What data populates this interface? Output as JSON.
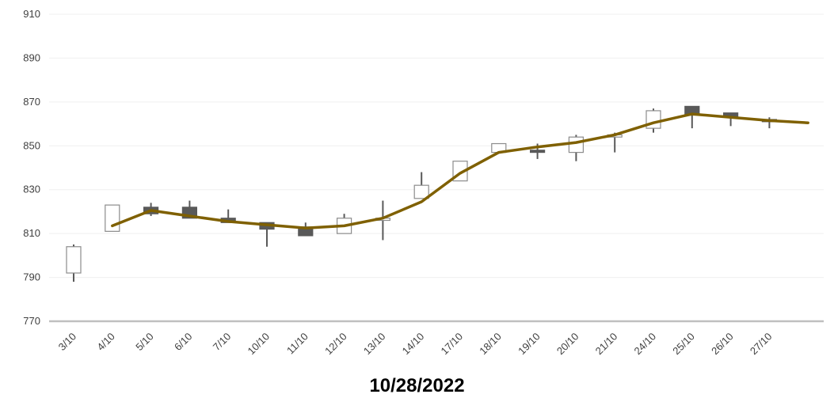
{
  "chart_data": {
    "type": "candlestick",
    "title": "10/28/2022",
    "xlabel": "",
    "ylabel": "",
    "ylim": [
      770,
      910
    ],
    "yticks": [
      770,
      790,
      810,
      830,
      850,
      870,
      890,
      910
    ],
    "grid": true,
    "categories": [
      "3/10",
      "4/10",
      "5/10",
      "6/10",
      "7/10",
      "10/10",
      "11/10",
      "12/10",
      "13/10",
      "14/10",
      "17/10",
      "18/10",
      "19/10",
      "20/10",
      "21/10",
      "24/10",
      "25/10",
      "26/10",
      "27/10"
    ],
    "open": [
      792,
      811,
      822,
      822,
      817,
      815,
      813,
      810,
      816,
      826,
      834,
      847,
      848,
      847,
      854,
      858,
      868,
      865,
      862
    ],
    "high": [
      805,
      823,
      824,
      825,
      821,
      815,
      815,
      819,
      825,
      838,
      843,
      851,
      851,
      855,
      856,
      867,
      868,
      865,
      863
    ],
    "low": [
      788,
      811,
      818,
      817,
      815,
      804,
      809,
      810,
      807,
      826,
      834,
      847,
      844,
      843,
      847,
      856,
      858,
      859,
      858
    ],
    "close": [
      804,
      823,
      819,
      817,
      815,
      812,
      809,
      817,
      817,
      832,
      843,
      851,
      847,
      854,
      855,
      866,
      864,
      863,
      861
    ],
    "trend": {
      "x_start_index": 1,
      "values": [
        813.5,
        820.5,
        818,
        815.5,
        814,
        812.5,
        813.5,
        817,
        824.5,
        837.5,
        847,
        849.5,
        851.5,
        855,
        860.5,
        864.5,
        863,
        861.5,
        860.5
      ]
    },
    "colors": {
      "up_body": "#ffffff",
      "up_border": "#8c8c8c",
      "down_body": "#595959",
      "wick": "#595959",
      "trend": "#7f6000",
      "grid": "#efefef",
      "axis": "#bfbfbf"
    }
  }
}
